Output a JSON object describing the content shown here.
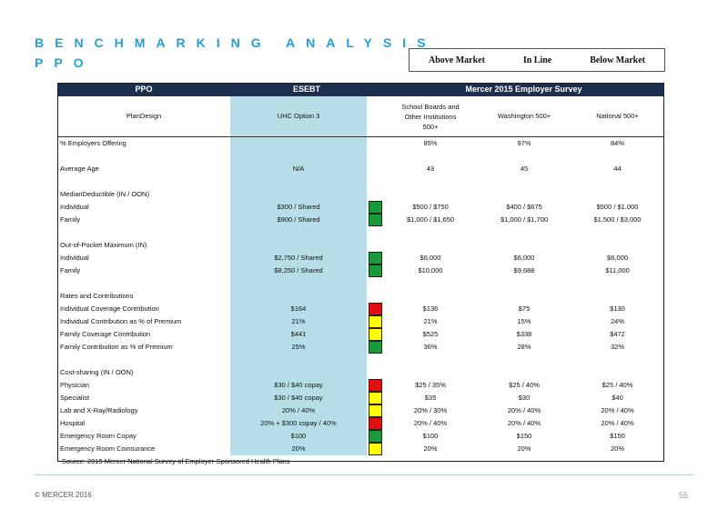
{
  "title_line1": "BENCHMARKING ANALYSIS",
  "title_line2": "PPO",
  "legend": {
    "above": "Above Market",
    "inline": "In Line",
    "below": "Below Market"
  },
  "header": {
    "col1": "PPO",
    "col2": "ESEBT",
    "col3": "Mercer 2015 Employer Survey"
  },
  "subheader": {
    "plan_design": "PlanDesign",
    "esebt": "UHC Option 3",
    "school_line1": "School Boards and",
    "school_line2": "Other Institutions",
    "school_line3": "500+",
    "washington": "Washington 500+",
    "national": "National 500+"
  },
  "rows": [
    {
      "label": "% Employers Offering",
      "esebt": "",
      "ind": "",
      "school": "85%",
      "wa": "97%",
      "nat": "84%"
    },
    {
      "label": "",
      "esebt": "",
      "ind": "",
      "school": "",
      "wa": "",
      "nat": ""
    },
    {
      "label": "Average Age",
      "esebt": "N/A",
      "ind": "",
      "school": "43",
      "wa": "45",
      "nat": "44"
    },
    {
      "label": "",
      "esebt": "",
      "ind": "",
      "school": "",
      "wa": "",
      "nat": ""
    },
    {
      "label": "MedianDeductible (IN / OON)",
      "esebt": "",
      "ind": "",
      "school": "",
      "wa": "",
      "nat": ""
    },
    {
      "label": "Individual",
      "esebt": "$300 / Shared",
      "ind": "green",
      "school": "$500 / $750",
      "wa": "$400 / $675",
      "nat": "$500 / $1,000"
    },
    {
      "label": "Family",
      "esebt": "$900 / Shared",
      "ind": "green",
      "school": "$1,000 / $1,650",
      "wa": "$1,000 / $1,700",
      "nat": "$1,500 / $3,000"
    },
    {
      "label": "",
      "esebt": "",
      "ind": "",
      "school": "",
      "wa": "",
      "nat": ""
    },
    {
      "label": "Out-of-Pocket Maximum (IN)",
      "esebt": "",
      "ind": "",
      "school": "",
      "wa": "",
      "nat": ""
    },
    {
      "label": "Individual",
      "esebt": "$2,750 / Shared",
      "ind": "green",
      "school": "$6,000",
      "wa": "$6,000",
      "nat": "$6,000"
    },
    {
      "label": "Family",
      "esebt": "$8,250 / Shared",
      "ind": "green",
      "school": "$10,000",
      "wa": "$9,688",
      "nat": "$11,000"
    },
    {
      "label": "",
      "esebt": "",
      "ind": "",
      "school": "",
      "wa": "",
      "nat": ""
    },
    {
      "label": "Rates and Contributions",
      "esebt": "",
      "ind": "",
      "school": "",
      "wa": "",
      "nat": ""
    },
    {
      "label": "Individual Coverage Contribution",
      "esebt": "$164",
      "ind": "red",
      "school": "$136",
      "wa": "$75",
      "nat": "$130"
    },
    {
      "label": "Individual Contribution as % of Premium",
      "esebt": "21%",
      "ind": "yellow",
      "school": "21%",
      "wa": "15%",
      "nat": "24%"
    },
    {
      "label": "Family Coverage Contribution",
      "esebt": "$441",
      "ind": "yellow",
      "school": "$525",
      "wa": "$338",
      "nat": "$472"
    },
    {
      "label": "Family Contribution as % of Premium",
      "esebt": "25%",
      "ind": "green",
      "school": "36%",
      "wa": "28%",
      "nat": "32%"
    },
    {
      "label": "",
      "esebt": "",
      "ind": "",
      "school": "",
      "wa": "",
      "nat": ""
    },
    {
      "label": "Cost-sharing (IN / OON)",
      "esebt": "",
      "ind": "",
      "school": "",
      "wa": "",
      "nat": ""
    },
    {
      "label": "Physician",
      "esebt": "$30 / $40 copay",
      "ind": "red",
      "school": "$25 / 35%",
      "wa": "$25 / 40%",
      "nat": "$25 / 40%"
    },
    {
      "label": "Specialist",
      "esebt": "$30 / $40 copay",
      "ind": "yellow",
      "school": "$35",
      "wa": "$30",
      "nat": "$40"
    },
    {
      "label": "Lab and X-Ray/Radiology",
      "esebt": "20% / 40%",
      "ind": "yellow",
      "school": "20% / 30%",
      "wa": "20% / 40%",
      "nat": "20% / 40%"
    },
    {
      "label": "Hospital",
      "esebt": "20% + $300 copay / 40%",
      "ind": "red",
      "school": "20% / 40%",
      "wa": "20% / 40%",
      "nat": "20% / 40%"
    },
    {
      "label": "Emergency Room Copay",
      "esebt": "$100",
      "ind": "green",
      "school": "$100",
      "wa": "$150",
      "nat": "$150"
    },
    {
      "label": "Emergency Room Coinsurance",
      "esebt": "20%",
      "ind": "yellow",
      "school": "20%",
      "wa": "20%",
      "nat": "20%"
    }
  ],
  "indicator_colors": {
    "green": "#1a9a3a",
    "yellow": "#ffff00",
    "red": "#e01010"
  },
  "source": "Source: 2015 Mercer National Survey of Employer-Sponsored Health Plans",
  "footer": "© MERCER 2016",
  "page_number": "55"
}
